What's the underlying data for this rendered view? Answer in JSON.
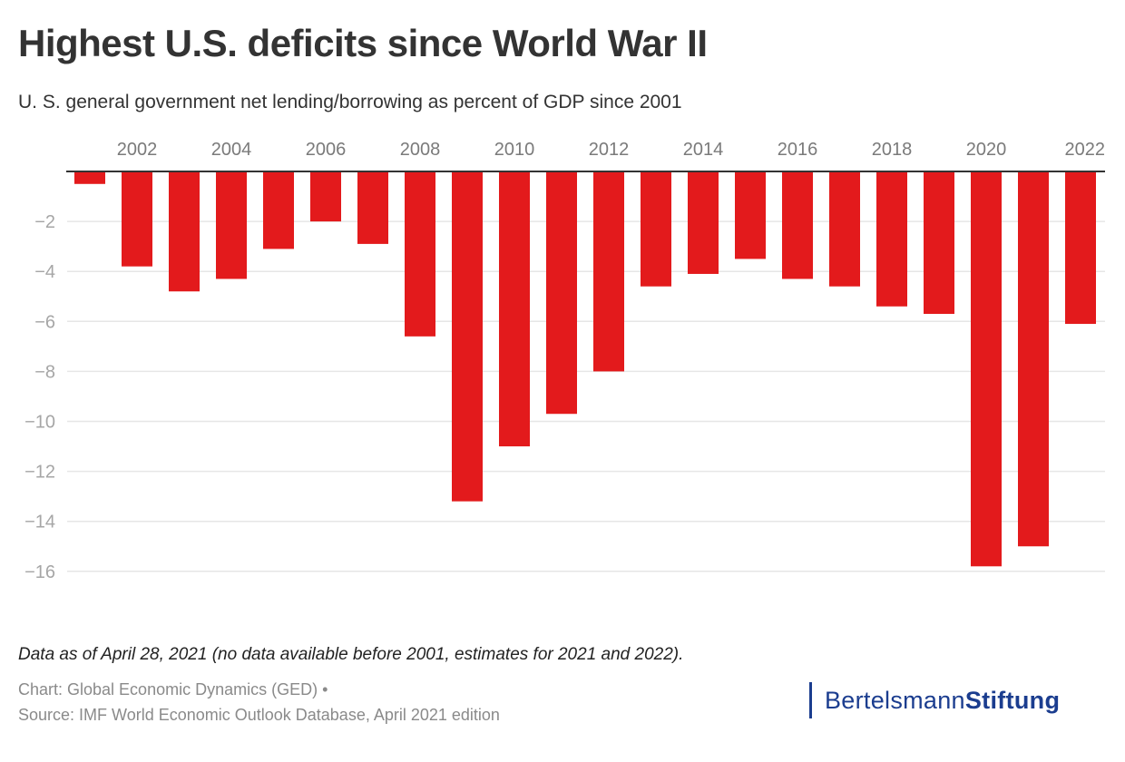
{
  "title": "Highest U.S. deficits since World War II",
  "subtitle": "U. S. general government net lending/borrowing as percent of GDP since 2001",
  "note": "Data as of April 28, 2021 (no data available before 2001, estimates for 2021 and 2022).",
  "credit": {
    "line1": "Chart: Global Economic Dynamics (GED) •",
    "line2": "Source: IMF World Economic Outlook Database, April 2021 edition"
  },
  "logo": {
    "regular": "Bertelsmann",
    "bold": "Stiftung",
    "color": "#1b3d8f"
  },
  "colors": {
    "bar": "#e31a1c",
    "axis": "#333333",
    "grid": "#e6e6e6"
  },
  "chart_data": {
    "type": "bar",
    "title": "Highest U.S. deficits since World War II",
    "subtitle": "U. S. general government net lending/borrowing as percent of GDP since 2001",
    "xlabel": "",
    "ylabel": "",
    "x_axis_position": "top",
    "categories": [
      "2001",
      "2002",
      "2003",
      "2004",
      "2005",
      "2006",
      "2007",
      "2008",
      "2009",
      "2010",
      "2011",
      "2012",
      "2013",
      "2014",
      "2015",
      "2016",
      "2017",
      "2018",
      "2019",
      "2020",
      "2021",
      "2022"
    ],
    "x_tick_labels": [
      "2002",
      "2004",
      "2006",
      "2008",
      "2010",
      "2012",
      "2014",
      "2016",
      "2018",
      "2020",
      "2022"
    ],
    "values": [
      -0.5,
      -3.8,
      -4.8,
      -4.3,
      -3.1,
      -2.0,
      -2.9,
      -6.6,
      -13.2,
      -11.0,
      -9.7,
      -8.0,
      -4.6,
      -4.1,
      -3.5,
      -4.3,
      -4.6,
      -5.4,
      -5.7,
      -15.8,
      -15.0,
      -6.1
    ],
    "y_ticks": [
      -2,
      -4,
      -6,
      -8,
      -10,
      -12,
      -14,
      -16
    ],
    "y_tick_labels": [
      "−2",
      "−4",
      "−6",
      "−8",
      "−10",
      "−12",
      "−14",
      "−16"
    ],
    "ylim": [
      -16.5,
      0
    ],
    "grid": true,
    "legend": "none"
  }
}
